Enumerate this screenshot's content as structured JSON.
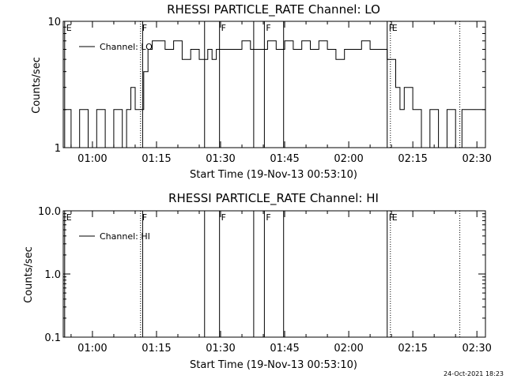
{
  "chart_data": [
    {
      "type": "line",
      "title": "RHESSI PARTICLE_RATE Channel: LO",
      "xlabel": "Start Time (19-Nov-13 00:53:10)",
      "ylabel": "Counts/sec",
      "yscale": "log",
      "ylim": [
        1,
        10
      ],
      "xlim": [
        "00:53:10",
        "02:32:00"
      ],
      "x_ticks": [
        "01:00",
        "01:15",
        "01:30",
        "01:45",
        "02:00",
        "02:15",
        "02:30"
      ],
      "y_ticks": [
        "1",
        "10"
      ],
      "legend": "top-left",
      "series": [
        {
          "name": "Channel: LO",
          "x": [
            "00:53:10",
            "00:55:00",
            "00:57:00",
            "00:59:00",
            "01:01:00",
            "01:03:00",
            "01:05:00",
            "01:07:00",
            "01:08:00",
            "01:09:00",
            "01:10:00",
            "01:11:00",
            "01:12:00",
            "01:13:00",
            "01:14:00",
            "01:15:00",
            "01:17:00",
            "01:19:00",
            "01:21:00",
            "01:23:00",
            "01:25:00",
            "01:27:00",
            "01:28:00",
            "01:29:00",
            "01:31:00",
            "01:33:00",
            "01:35:00",
            "01:37:00",
            "01:39:00",
            "01:41:00",
            "01:43:00",
            "01:45:00",
            "01:47:00",
            "01:49:00",
            "01:51:00",
            "01:53:00",
            "01:55:00",
            "01:57:00",
            "01:59:00",
            "02:01:00",
            "02:03:00",
            "02:05:00",
            "02:07:00",
            "02:09:00",
            "02:10:00",
            "02:11:00",
            "02:12:00",
            "02:13:00",
            "02:15:00",
            "02:17:00",
            "02:19:00",
            "02:21:00",
            "02:23:00",
            "02:25:00",
            "02:26:30"
          ],
          "y": [
            2,
            1,
            2,
            1,
            2,
            1,
            2,
            1,
            2,
            3,
            2,
            2,
            4,
            6,
            7,
            7,
            6,
            7,
            5,
            6,
            5,
            6,
            5,
            6,
            6,
            6,
            7,
            6,
            6,
            7,
            6,
            7,
            6,
            7,
            6,
            7,
            6,
            5,
            6,
            6,
            7,
            6,
            6,
            5,
            5,
            3,
            2,
            3,
            2,
            1,
            2,
            1,
            2,
            1,
            2
          ]
        }
      ],
      "flag_lines": [
        {
          "time": "00:53:30",
          "label": "E",
          "style": "solid"
        },
        {
          "time": "01:11:15",
          "label": "F",
          "style": "dotted"
        },
        {
          "time": "01:11:45",
          "label": "",
          "style": "solid"
        },
        {
          "time": "01:26:15",
          "label": "",
          "style": "solid"
        },
        {
          "time": "01:29:45",
          "label": "F",
          "style": "solid"
        },
        {
          "time": "01:37:45",
          "label": "",
          "style": "solid"
        },
        {
          "time": "01:40:15",
          "label": "F",
          "style": "solid"
        },
        {
          "time": "01:44:45",
          "label": "",
          "style": "solid"
        },
        {
          "time": "02:09:00",
          "label": "F",
          "style": "solid"
        },
        {
          "time": "02:09:45",
          "label": "E",
          "style": "dotted"
        },
        {
          "time": "02:26:00",
          "label": "",
          "style": "dotted"
        }
      ]
    },
    {
      "type": "line",
      "title": "RHESSI PARTICLE_RATE Channel: HI",
      "xlabel": "Start Time (19-Nov-13 00:53:10)",
      "ylabel": "Counts/sec",
      "yscale": "log",
      "ylim": [
        0.1,
        10
      ],
      "xlim": [
        "00:53:10",
        "02:32:00"
      ],
      "x_ticks": [
        "01:00",
        "01:15",
        "01:30",
        "01:45",
        "02:00",
        "02:15",
        "02:30"
      ],
      "y_ticks": [
        "0.1",
        "1.0",
        "10.0"
      ],
      "legend": "top-left",
      "series": [
        {
          "name": "Channel: HI",
          "x": [],
          "y": []
        }
      ],
      "flag_lines": [
        {
          "time": "00:53:30",
          "label": "E",
          "style": "solid"
        },
        {
          "time": "01:11:15",
          "label": "F",
          "style": "dotted"
        },
        {
          "time": "01:11:45",
          "label": "",
          "style": "solid"
        },
        {
          "time": "01:26:15",
          "label": "",
          "style": "solid"
        },
        {
          "time": "01:29:45",
          "label": "F",
          "style": "solid"
        },
        {
          "time": "01:37:45",
          "label": "",
          "style": "solid"
        },
        {
          "time": "01:40:15",
          "label": "F",
          "style": "solid"
        },
        {
          "time": "01:44:45",
          "label": "",
          "style": "solid"
        },
        {
          "time": "02:09:00",
          "label": "F",
          "style": "solid"
        },
        {
          "time": "02:09:45",
          "label": "E",
          "style": "dotted"
        },
        {
          "time": "02:26:00",
          "label": "",
          "style": "dotted"
        }
      ]
    }
  ],
  "footer": {
    "timestamp": "24-Oct-2021 18:23"
  }
}
